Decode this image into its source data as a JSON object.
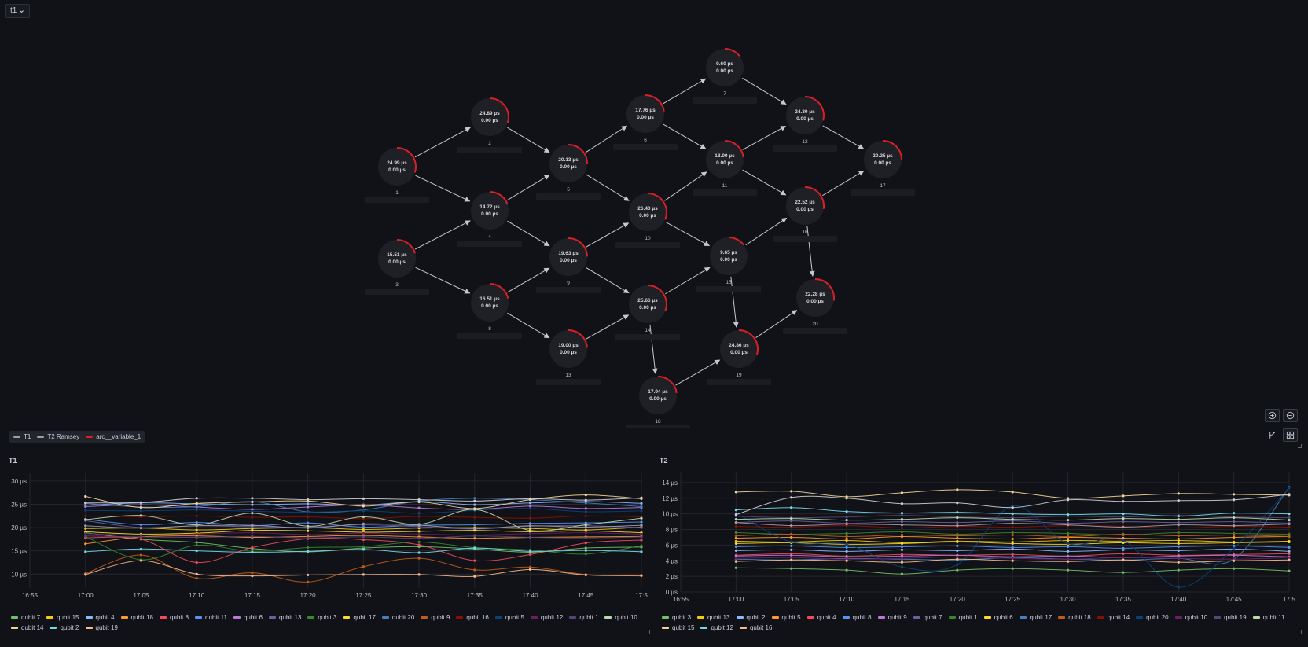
{
  "variable": {
    "label": "t1",
    "chevron": "chevron-down-icon"
  },
  "graph": {
    "nodes": [
      {
        "id": "1",
        "t1": "24.99 µs",
        "t2": "0.00 µs"
      },
      {
        "id": "2",
        "t1": "24.89 µs",
        "t2": "0.00 µs"
      },
      {
        "id": "3",
        "t1": "15.51 µs",
        "t2": "0.00 µs"
      },
      {
        "id": "4",
        "t1": "14.72 µs",
        "t2": "0.00 µs"
      },
      {
        "id": "5",
        "t1": "20.13 µs",
        "t2": "0.00 µs"
      },
      {
        "id": "6",
        "t1": "17.76 µs",
        "t2": "0.00 µs"
      },
      {
        "id": "7",
        "t1": "9.60 µs",
        "t2": "0.00 µs"
      },
      {
        "id": "8",
        "t1": "16.51 µs",
        "t2": "0.00 µs"
      },
      {
        "id": "9",
        "t1": "19.63 µs",
        "t2": "0.00 µs"
      },
      {
        "id": "10",
        "t1": "26.40 µs",
        "t2": "0.00 µs"
      },
      {
        "id": "11",
        "t1": "18.00 µs",
        "t2": "0.00 µs"
      },
      {
        "id": "12",
        "t1": "24.30 µs",
        "t2": "0.00 µs"
      },
      {
        "id": "13",
        "t1": "19.00 µs",
        "t2": "0.00 µs"
      },
      {
        "id": "14",
        "t1": "25.66 µs",
        "t2": "0.00 µs"
      },
      {
        "id": "15",
        "t1": "9.65 µs",
        "t2": "0.00 µs"
      },
      {
        "id": "16",
        "t1": "22.52 µs",
        "t2": "0.00 µs"
      },
      {
        "id": "17",
        "t1": "20.25 µs",
        "t2": "0.00 µs"
      },
      {
        "id": "18",
        "t1": "17.94 µs",
        "t2": "0.00 µs"
      },
      {
        "id": "19",
        "t1": "24.86 µs",
        "t2": "0.00 µs"
      },
      {
        "id": "20",
        "t1": "22.28 µs",
        "t2": "0.00 µs"
      }
    ],
    "edges": [
      [
        "1",
        "2"
      ],
      [
        "1",
        "4"
      ],
      [
        "3",
        "4"
      ],
      [
        "3",
        "8"
      ],
      [
        "2",
        "5"
      ],
      [
        "4",
        "5"
      ],
      [
        "4",
        "9"
      ],
      [
        "8",
        "9"
      ],
      [
        "8",
        "13"
      ],
      [
        "5",
        "6"
      ],
      [
        "5",
        "10"
      ],
      [
        "9",
        "10"
      ],
      [
        "9",
        "14"
      ],
      [
        "13",
        "14"
      ],
      [
        "14",
        "18"
      ],
      [
        "6",
        "7"
      ],
      [
        "6",
        "11"
      ],
      [
        "10",
        "11"
      ],
      [
        "10",
        "15"
      ],
      [
        "14",
        "15"
      ],
      [
        "15",
        "19"
      ],
      [
        "18",
        "19"
      ],
      [
        "7",
        "12"
      ],
      [
        "11",
        "12"
      ],
      [
        "11",
        "16"
      ],
      [
        "15",
        "16"
      ],
      [
        "19",
        "20"
      ],
      [
        "12",
        "17"
      ],
      [
        "16",
        "17"
      ],
      [
        "16",
        "20"
      ]
    ],
    "arc_color": "#d91f26"
  },
  "legend": [
    {
      "label": "T1",
      "color": "#9fa0a6"
    },
    {
      "label": "T2 Ramsey",
      "color": "#9fa0a6"
    },
    {
      "label": "arc__variable_1",
      "color": "#d91f26"
    }
  ],
  "zoom": {
    "in": "zoom-in-icon",
    "out": "zoom-out-icon",
    "layout": "layout-icon",
    "grid": "grid-icon"
  },
  "t1_panel": {
    "title": "T1",
    "chart_data": {
      "type": "line",
      "x": [
        "16:55",
        "17:00",
        "17:05",
        "17:10",
        "17:15",
        "17:20",
        "17:25",
        "17:30",
        "17:35",
        "17:40",
        "17:45",
        "17:50"
      ],
      "ylim": [
        7,
        31
      ],
      "y_ticks": [
        {
          "v": 10,
          "l": "10 µs"
        },
        {
          "v": 15,
          "l": "15 µs"
        },
        {
          "v": 20,
          "l": "20 µs"
        },
        {
          "v": 25,
          "l": "25 µs"
        },
        {
          "v": 30,
          "l": "30 µs"
        }
      ],
      "x_ticks": [
        "16:55",
        "17:00",
        "17:05",
        "17:10",
        "17:15",
        "17:20",
        "17:25",
        "17:30",
        "17:35",
        "17:40",
        "17:45",
        "17:5"
      ],
      "series": [
        {
          "name": "qubit 7",
          "color": "#73bf69",
          "values": [
            null,
            18.9,
            17.5,
            16.8,
            15.5,
            14.8,
            15.6,
            15.9,
            15.4,
            14.7,
            15.6,
            15.8
          ]
        },
        {
          "name": "qubit 15",
          "color": "#f2cc0c",
          "values": [
            null,
            19.8,
            19.9,
            19.5,
            19.8,
            20.0,
            19.6,
            19.9,
            20.0,
            19.8,
            19.5,
            20.1
          ]
        },
        {
          "name": "qubit 4",
          "color": "#8ab8ff",
          "values": [
            null,
            24.8,
            25.3,
            25.1,
            24.9,
            25.1,
            24.8,
            25.6,
            24.9,
            25.3,
            25.6,
            25.2
          ]
        },
        {
          "name": "qubit 18",
          "color": "#ff9830",
          "values": [
            null,
            16.5,
            18.0,
            18.2,
            17.9,
            18.1,
            18.3,
            18.0,
            17.7,
            17.9,
            18.0,
            18.1
          ]
        },
        {
          "name": "qubit 8",
          "color": "#f2495c",
          "values": [
            null,
            17.8,
            17.5,
            12.5,
            15.7,
            17.6,
            17.4,
            16.3,
            12.9,
            14.2,
            16.7,
            17.3
          ]
        },
        {
          "name": "qubit 11",
          "color": "#5794f2",
          "values": [
            null,
            21.8,
            20.6,
            21.1,
            20.4,
            21.0,
            20.1,
            20.5,
            20.6,
            20.9,
            21.0,
            21.2
          ]
        },
        {
          "name": "qubit 6",
          "color": "#b877d9",
          "values": [
            null,
            24.5,
            24.9,
            24.4,
            23.9,
            24.4,
            24.9,
            24.2,
            23.9,
            24.6,
            24.1,
            24.3
          ]
        },
        {
          "name": "qubit 13",
          "color": "#705da0",
          "values": [
            null,
            21.5,
            20.0,
            20.4,
            20.2,
            20.1,
            20.6,
            20.2,
            19.7,
            20.3,
            20.4,
            20.0
          ]
        },
        {
          "name": "qubit 3",
          "color": "#37872d",
          "values": [
            null,
            18.1,
            13.1,
            16.2,
            14.9,
            15.7,
            15.9,
            16.9,
            15.7,
            15.2,
            14.3,
            16.1
          ]
        },
        {
          "name": "qubit 17",
          "color": "#fade2a",
          "values": [
            null,
            19.1,
            18.6,
            18.8,
            19.4,
            19.3,
            19.0,
            19.2,
            19.4,
            19.1,
            19.3,
            18.9
          ]
        },
        {
          "name": "qubit 20",
          "color": "#447ebc",
          "values": [
            null,
            25.2,
            24.4,
            24.5,
            25.6,
            23.4,
            23.8,
            25.7,
            26.3,
            26.0,
            25.3,
            24.5
          ]
        },
        {
          "name": "qubit 9",
          "color": "#c15c17",
          "values": [
            null,
            10.1,
            14.1,
            9.1,
            10.3,
            8.3,
            11.6,
            13.4,
            10.9,
            11.5,
            9.9,
            9.6
          ]
        },
        {
          "name": "qubit 16",
          "color": "#890f02",
          "values": [
            null,
            22.5,
            22.3,
            22.5,
            22.2,
            22.3,
            21.9,
            22.4,
            22.2,
            22.0,
            22.5,
            22.3
          ]
        },
        {
          "name": "qubit 5",
          "color": "#0a437c",
          "values": [
            null,
            23.7,
            23.6,
            23.8,
            23.5,
            23.3,
            23.6,
            23.1,
            23.7,
            24.1,
            23.4,
            23.6
          ]
        },
        {
          "name": "qubit 12",
          "color": "#6d1f62",
          "values": [
            null,
            18.7,
            18.4,
            18.6,
            18.9,
            18.5,
            18.8,
            18.6,
            18.4,
            18.7,
            18.9,
            18.6
          ]
        },
        {
          "name": "qubit 1",
          "color": "#584477",
          "values": [
            null,
            18.2,
            18.0,
            17.9,
            18.1,
            17.8,
            18.0,
            17.7,
            18.2,
            17.9,
            17.8,
            18.0
          ]
        },
        {
          "name": "qubit 10",
          "color": "#b7dbab",
          "values": [
            null,
            21.7,
            22.6,
            20.6,
            23.1,
            20.3,
            22.3,
            20.7,
            23.9,
            19.4,
            20.6,
            22.0
          ]
        },
        {
          "name": "qubit 14",
          "color": "#f4d598",
          "values": [
            null,
            26.7,
            24.3,
            25.2,
            25.5,
            25.7,
            24.6,
            25.5,
            24.1,
            26.0,
            27.0,
            26.2
          ]
        },
        {
          "name": "qubit 2",
          "color": "#70dbed",
          "values": [
            null,
            14.8,
            15.4,
            15.0,
            14.7,
            14.9,
            15.3,
            14.6,
            15.6,
            14.9,
            15.1,
            14.8
          ]
        },
        {
          "name": "qubit 19",
          "color": "#f9ba8f",
          "values": [
            null,
            9.9,
            12.9,
            10.0,
            9.6,
            9.8,
            9.9,
            9.9,
            9.5,
            11.0,
            9.8,
            9.7
          ]
        },
        {
          "name": "",
          "color": "#cfcfd4",
          "values": [
            null,
            25.3,
            25.4,
            26.3,
            26.3,
            26.0,
            26.2,
            26.0,
            25.7,
            26.2,
            25.9,
            26.4
          ]
        },
        {
          "name": "",
          "color": "#a09fa6",
          "values": [
            null,
            20.4,
            19.9,
            20.4,
            20.5,
            19.9,
            20.8,
            20.5,
            19.8,
            20.4,
            20.1,
            20.5
          ]
        }
      ]
    }
  },
  "t2_panel": {
    "title": "T2",
    "chart_data": {
      "type": "line",
      "x": [
        "16:55",
        "17:00",
        "17:05",
        "17:10",
        "17:15",
        "17:20",
        "17:25",
        "17:30",
        "17:35",
        "17:40",
        "17:45",
        "17:50"
      ],
      "ylim": [
        0,
        15
      ],
      "y_ticks": [
        {
          "v": 0,
          "l": "0 µs"
        },
        {
          "v": 2,
          "l": "2 µs"
        },
        {
          "v": 4,
          "l": "4 µs"
        },
        {
          "v": 6,
          "l": "6 µs"
        },
        {
          "v": 8,
          "l": "8 µs"
        },
        {
          "v": 10,
          "l": "10 µs"
        },
        {
          "v": 12,
          "l": "12 µs"
        },
        {
          "v": 14,
          "l": "14 µs"
        }
      ],
      "x_ticks": [
        "16:55",
        "17:00",
        "17:05",
        "17:10",
        "17:15",
        "17:20",
        "17:25",
        "17:30",
        "17:35",
        "17:40",
        "17:45",
        "17:5"
      ],
      "series": [
        {
          "name": "qubit 3",
          "color": "#73bf69",
          "values": [
            null,
            3.1,
            3.0,
            2.8,
            2.3,
            2.8,
            3.0,
            2.8,
            2.5,
            2.8,
            3.0,
            2.7
          ]
        },
        {
          "name": "qubit 13",
          "color": "#f2cc0c",
          "values": [
            null,
            6.5,
            6.4,
            6.6,
            6.3,
            6.5,
            6.4,
            6.6,
            6.5,
            6.6,
            6.4,
            6.5
          ]
        },
        {
          "name": "qubit 2",
          "color": "#8ab8ff",
          "values": [
            null,
            5.3,
            5.4,
            5.2,
            5.4,
            5.3,
            5.5,
            5.2,
            5.4,
            5.3,
            5.5,
            5.2
          ]
        },
        {
          "name": "qubit 5",
          "color": "#ff9830",
          "values": [
            null,
            6.9,
            7.0,
            6.8,
            7.1,
            6.9,
            6.8,
            7.0,
            6.9,
            6.8,
            7.0,
            7.1
          ]
        },
        {
          "name": "qubit 4",
          "color": "#f2495c",
          "values": [
            null,
            4.7,
            4.9,
            4.6,
            4.8,
            4.7,
            4.8,
            4.6,
            4.9,
            4.7,
            4.8,
            4.9
          ]
        },
        {
          "name": "qubit 8",
          "color": "#5794f2",
          "values": [
            null,
            5.8,
            5.9,
            5.7,
            5.8,
            5.9,
            5.7,
            5.8,
            5.6,
            5.8,
            5.9,
            5.7
          ]
        },
        {
          "name": "qubit 9",
          "color": "#b877d9",
          "values": [
            null,
            4.6,
            4.7,
            4.5,
            4.6,
            4.7,
            4.5,
            4.6,
            4.4,
            4.6,
            4.7,
            4.5
          ]
        },
        {
          "name": "qubit 7",
          "color": "#705da0",
          "values": [
            null,
            8.9,
            9.1,
            8.8,
            9.0,
            8.9,
            9.1,
            8.8,
            9.0,
            8.9,
            9.0,
            8.8
          ]
        },
        {
          "name": "qubit 1",
          "color": "#37872d",
          "values": [
            null,
            7.6,
            7.4,
            7.5,
            7.7,
            7.4,
            7.6,
            7.5,
            7.3,
            7.6,
            7.5,
            7.4
          ]
        },
        {
          "name": "qubit 6",
          "color": "#fade2a",
          "values": [
            null,
            6.2,
            6.3,
            6.1,
            6.2,
            6.4,
            6.2,
            6.1,
            6.3,
            6.2,
            6.3,
            6.4
          ]
        },
        {
          "name": "qubit 17",
          "color": "#447ebc",
          "values": [
            null,
            4.2,
            4.1,
            4.3,
            4.2,
            4.1,
            4.4,
            4.2,
            4.1,
            4.3,
            4.2,
            13.4
          ]
        },
        {
          "name": "qubit 18",
          "color": "#c15c17",
          "values": [
            null,
            7.2,
            7.4,
            7.1,
            7.3,
            7.2,
            7.3,
            7.1,
            7.4,
            7.2,
            7.3,
            7.1
          ]
        },
        {
          "name": "qubit 14",
          "color": "#890f02",
          "values": [
            null,
            8.4,
            8.3,
            8.5,
            8.2,
            8.4,
            8.3,
            8.5,
            8.4,
            8.2,
            8.4,
            8.3
          ]
        },
        {
          "name": "qubit 20",
          "color": "#0a437c",
          "values": [
            null,
            10.1,
            6.4,
            6.1,
            3.2,
            3.5,
            11.0,
            6.2,
            6.6,
            0.6,
            5.6,
            13.3
          ]
        },
        {
          "name": "qubit 10",
          "color": "#6d1f62",
          "values": [
            null,
            4.3,
            4.4,
            4.2,
            4.3,
            4.5,
            4.3,
            4.2,
            4.4,
            4.3,
            4.2,
            4.4
          ]
        },
        {
          "name": "qubit 19",
          "color": "#584477",
          "values": [
            null,
            9.7,
            9.5,
            9.6,
            9.8,
            9.6,
            9.5,
            9.7,
            9.6,
            9.8,
            9.6,
            9.5
          ]
        },
        {
          "name": "qubit 11",
          "color": "#b7dbab",
          "values": [
            null,
            9.3,
            9.4,
            9.2,
            9.3,
            9.5,
            9.3,
            9.2,
            9.4,
            9.3,
            9.5,
            9.2
          ]
        },
        {
          "name": "qubit 15",
          "color": "#f4d598",
          "values": [
            null,
            12.8,
            12.9,
            12.2,
            12.7,
            13.1,
            12.8,
            12.0,
            12.3,
            12.6,
            12.5,
            12.4
          ]
        },
        {
          "name": "qubit 12",
          "color": "#70dbed",
          "values": [
            null,
            10.5,
            10.8,
            10.3,
            10.1,
            10.2,
            10.0,
            9.9,
            10.0,
            9.7,
            10.1,
            10.0
          ]
        },
        {
          "name": "qubit 16",
          "color": "#f9ba8f",
          "values": [
            null,
            3.9,
            4.1,
            4.0,
            3.8,
            4.2,
            4.0,
            3.9,
            4.1,
            3.8,
            4.0,
            4.1
          ]
        },
        {
          "name": "",
          "color": "#cfcfd4",
          "values": [
            null,
            9.9,
            12.1,
            12.0,
            11.3,
            11.4,
            10.8,
            11.8,
            11.6,
            11.7,
            11.8,
            12.5
          ]
        },
        {
          "name": "",
          "color": "#a09fa6",
          "values": [
            null,
            8.9,
            8.5,
            8.7,
            8.6,
            8.5,
            8.8,
            8.6,
            8.3,
            8.6,
            8.5,
            8.7
          ]
        }
      ]
    }
  }
}
